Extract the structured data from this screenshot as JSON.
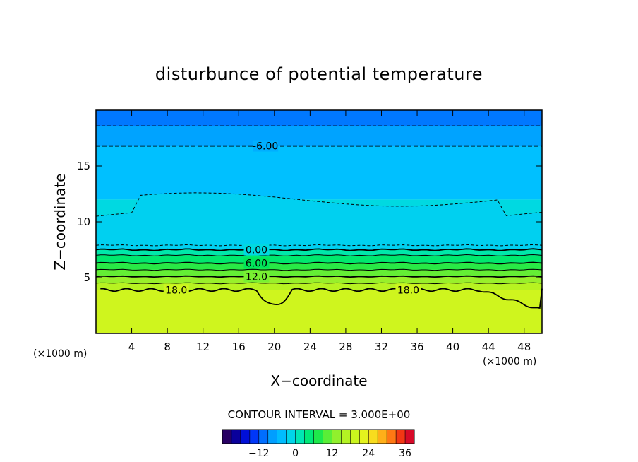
{
  "chart_data": {
    "type": "heatmap",
    "title": "disturbunce of potential temperature",
    "xlabel": "X−coordinate",
    "ylabel": "Z−coordinate",
    "x_unit": "(×1000 m)",
    "y_unit": "(×1000 m)",
    "xlim": [
      0,
      50
    ],
    "ylim": [
      0,
      20
    ],
    "x_ticks": [
      4,
      8,
      12,
      16,
      20,
      24,
      28,
      32,
      36,
      40,
      44,
      48
    ],
    "y_ticks": [
      5,
      10,
      15
    ],
    "contour_interval_text": "CONTOUR INTERVAL = 3.000E+00",
    "contour_interval": 3.0,
    "contour_labels": [
      {
        "text": "-6.00",
        "x": 19,
        "y": 16.8
      },
      {
        "text": "0.00",
        "x": 18,
        "y": 7.5
      },
      {
        "text": "6.00",
        "x": 18,
        "y": 6.3
      },
      {
        "text": "12.0",
        "x": 18,
        "y": 5.1
      },
      {
        "text": "18.0",
        "x": 9,
        "y": 3.9
      },
      {
        "text": "18.0",
        "x": 35,
        "y": 3.9
      }
    ],
    "bands": [
      {
        "z0": 18.6,
        "z1": 20.0,
        "value": -10
      },
      {
        "z0": 16.8,
        "z1": 18.6,
        "value": -7
      },
      {
        "z0": 12.0,
        "z1": 16.8,
        "value": -4
      },
      {
        "z0": 7.5,
        "z1": 12.0,
        "value": -1
      },
      {
        "z0": 7.0,
        "z1": 7.5,
        "value": 2
      },
      {
        "z0": 6.3,
        "z1": 7.0,
        "value": 5
      },
      {
        "z0": 5.7,
        "z1": 6.3,
        "value": 8
      },
      {
        "z0": 5.1,
        "z1": 5.7,
        "value": 11
      },
      {
        "z0": 4.5,
        "z1": 5.1,
        "value": 14
      },
      {
        "z0": 3.9,
        "z1": 4.5,
        "value": 17
      },
      {
        "z0": 0.0,
        "z1": 3.9,
        "value": 20
      }
    ],
    "colorbar": {
      "min": -24,
      "max": 39,
      "step": 3,
      "ticks": [
        -12,
        0,
        12,
        24,
        36
      ]
    }
  }
}
